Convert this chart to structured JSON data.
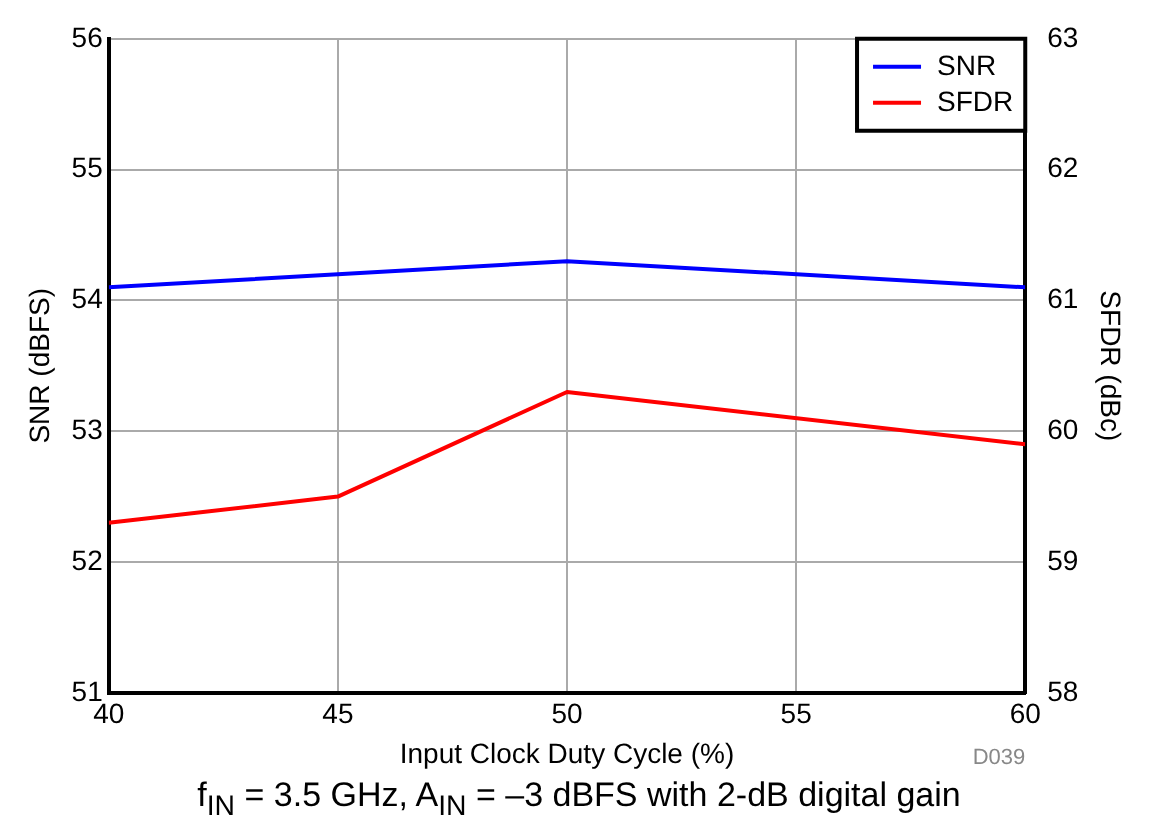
{
  "chart_data": {
    "type": "line",
    "xlabel": "Input Clock Duty Cycle (%)",
    "ylabel": "SNR (dBFS)",
    "y2label": "SFDR (dBc)",
    "x": [
      40,
      45,
      50,
      60
    ],
    "series": [
      {
        "name": "SNR",
        "color": "#0000ff",
        "values": [
          54.1,
          54.2,
          54.3,
          54.1
        ]
      },
      {
        "name": "SFDR",
        "color": "#ff0000",
        "values": [
          59.3,
          59.5,
          60.3,
          59.9
        ],
        "axis": "y2"
      }
    ],
    "xlim": [
      40,
      60
    ],
    "xticks": [
      40,
      45,
      50,
      55,
      60
    ],
    "ylim": [
      51,
      56
    ],
    "yticks": [
      51,
      52,
      53,
      54,
      55,
      56
    ],
    "y2lim": [
      58,
      63
    ],
    "y2ticks": [
      58,
      59,
      60,
      61,
      62,
      63
    ],
    "grid": true,
    "legend": "top right",
    "marker": "none",
    "line_style": "solid",
    "annotations": [
      "D039",
      "f$_{IN}$ = 3.5 GHz, A$_{IN}$ = –3 dBFS with 2-dB digital gain"
    ]
  }
}
